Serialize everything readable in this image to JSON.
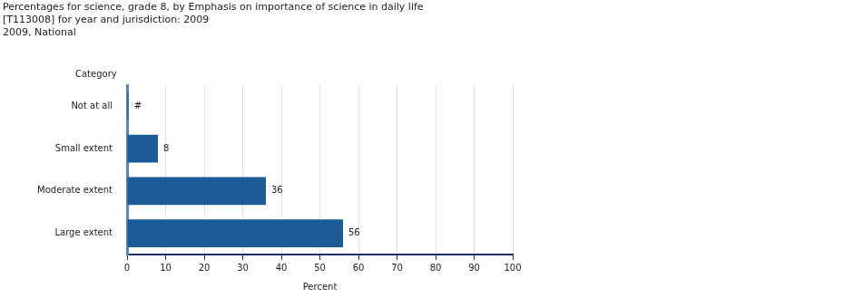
{
  "chart_data": {
    "type": "bar",
    "title": [
      "Percentages for science, grade 8, by Emphasis on importance of science in daily life",
      "[T113008] for year and jurisdiction: 2009"
    ],
    "subtitle": "2009, National",
    "y_label": "Category",
    "x_label": "Percent",
    "categories": [
      "Not at all",
      "Small extent",
      "Moderate extent",
      "Large extent"
    ],
    "values": [
      0.4,
      8,
      36,
      56
    ],
    "value_labels": [
      "#",
      "8",
      "36",
      "56"
    ],
    "color": "#1b5b97",
    "orientation": "horizontal",
    "data_labels": true,
    "xlim": [
      0,
      100
    ],
    "xticks": [
      0,
      10,
      20,
      30,
      40,
      50,
      60,
      70,
      80,
      90,
      100
    ],
    "grid": true
  }
}
